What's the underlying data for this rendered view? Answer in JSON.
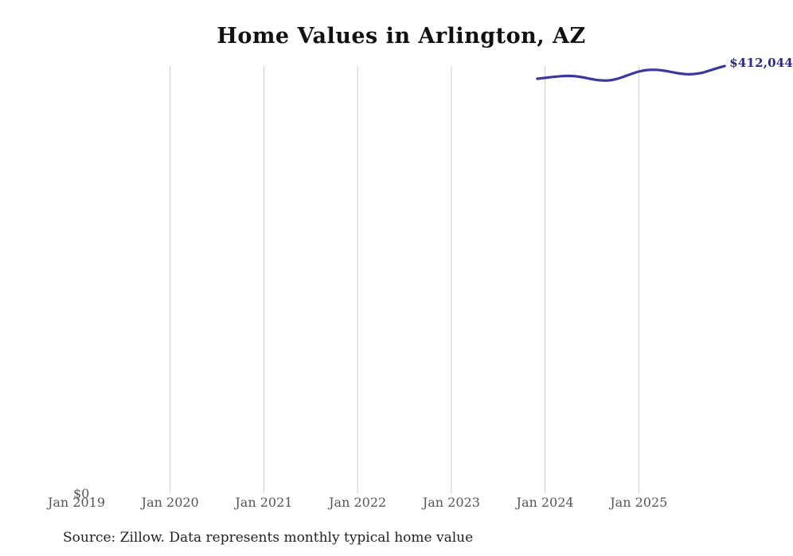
{
  "chart_data": {
    "type": "line",
    "title": "Home Values in Arlington, AZ",
    "source_note": "Source: Zillow. Data represents monthly typical home value",
    "xlabel": "",
    "ylabel": "",
    "x_domain": [
      "2019-01",
      "2026-01"
    ],
    "ylim": [
      0,
      412044
    ],
    "grid": "vertical-only",
    "legend_position": "none",
    "x_ticks": [
      {
        "label": "Jan 2019",
        "month": "2019-01",
        "gridline": false
      },
      {
        "label": "Jan 2020",
        "month": "2020-01",
        "gridline": true
      },
      {
        "label": "Jan 2021",
        "month": "2021-01",
        "gridline": true
      },
      {
        "label": "Jan 2022",
        "month": "2022-01",
        "gridline": true
      },
      {
        "label": "Jan 2023",
        "month": "2023-01",
        "gridline": true
      },
      {
        "label": "Jan 2024",
        "month": "2024-01",
        "gridline": true
      },
      {
        "label": "Jan 2025",
        "month": "2025-01",
        "gridline": true
      }
    ],
    "y_ticks": [
      {
        "label": "$0",
        "value": 0
      }
    ],
    "series": [
      {
        "name": "Monthly typical home value",
        "end_label": "$412,044",
        "x": [
          "2023-12",
          "2024-01",
          "2024-02",
          "2024-03",
          "2024-04",
          "2024-05",
          "2024-06",
          "2024-07",
          "2024-08",
          "2024-09",
          "2024-10",
          "2024-11",
          "2024-12",
          "2025-01",
          "2025-02",
          "2025-03",
          "2025-04",
          "2025-05",
          "2025-06",
          "2025-07",
          "2025-08",
          "2025-09",
          "2025-10",
          "2025-11",
          "2025-12"
        ],
        "values": [
          399800,
          400600,
          401500,
          402200,
          402500,
          402100,
          400900,
          399400,
          398300,
          398100,
          399200,
          401500,
          404300,
          406700,
          408100,
          408400,
          407800,
          406500,
          405100,
          404200,
          404300,
          405400,
          407500,
          409900,
          412044
        ]
      }
    ],
    "colors": {
      "line": "#3b399e",
      "end_label": "#2b2a80",
      "grid": "#cccccc",
      "tick_label": "#555555",
      "title": "#111111",
      "source": "#222222"
    }
  }
}
